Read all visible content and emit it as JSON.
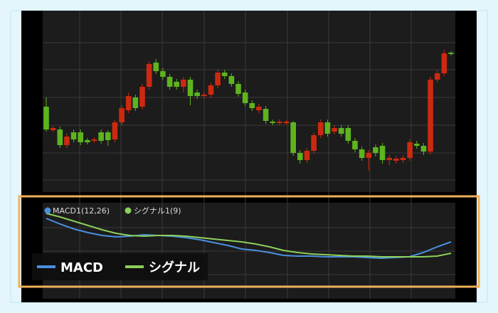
{
  "chart_data": [
    {
      "type": "candlestick",
      "ylim": [
        0,
        250
      ],
      "up_color": "#cc2a10",
      "down_color": "#5db41e",
      "open": [
        120,
        87,
        88,
        66,
        84,
        84,
        73,
        72,
        84,
        84,
        74,
        98,
        115,
        133,
        120,
        148,
        182,
        170,
        162,
        155,
        148,
        158,
        140,
        135,
        137,
        150,
        168,
        163,
        152,
        140,
        125,
        115,
        117,
        99,
        97,
        97,
        98,
        55,
        45,
        58,
        80,
        98,
        85,
        90,
        90,
        72,
        60,
        48,
        63,
        65,
        45,
        44,
        45,
        48,
        68,
        65,
        57,
        158,
        167,
        196
      ],
      "high": [
        133,
        93,
        92,
        82,
        88,
        88,
        76,
        77,
        88,
        87,
        102,
        122,
        140,
        137,
        152,
        184,
        187,
        174,
        166,
        159,
        162,
        162,
        144,
        141,
        154,
        172,
        172,
        167,
        156,
        144,
        129,
        124,
        121,
        102,
        102,
        101,
        100,
        59,
        62,
        84,
        102,
        102,
        94,
        94,
        94,
        76,
        64,
        59,
        67,
        69,
        52,
        51,
        52,
        74,
        72,
        69,
        162,
        172,
        200,
        198
      ],
      "low": [
        85,
        84,
        62,
        62,
        70,
        66,
        67,
        69,
        68,
        65,
        70,
        94,
        111,
        114,
        116,
        144,
        166,
        158,
        144,
        144,
        140,
        122,
        131,
        131,
        133,
        146,
        159,
        148,
        134,
        121,
        114,
        111,
        96,
        94,
        94,
        95,
        51,
        40,
        41,
        54,
        76,
        78,
        81,
        78,
        68,
        56,
        44,
        30,
        50,
        40,
        38,
        40,
        41,
        44,
        61,
        52,
        53,
        154,
        163,
        192
      ],
      "close": [
        88,
        90,
        66,
        78,
        74,
        70,
        70,
        74,
        72,
        73,
        98,
        118,
        135,
        118,
        148,
        180,
        170,
        162,
        148,
        148,
        158,
        135,
        135,
        137,
        150,
        168,
        163,
        152,
        138,
        125,
        118,
        120,
        100,
        97,
        99,
        99,
        55,
        45,
        58,
        80,
        98,
        82,
        90,
        82,
        72,
        60,
        48,
        55,
        55,
        45,
        48,
        47,
        48,
        70,
        65,
        57,
        158,
        167,
        195,
        194
      ]
    },
    {
      "type": "line",
      "ylim": [
        0,
        130
      ],
      "series": [
        {
          "name": "MACD1(12,26)",
          "color": "#4a8fe0",
          "values": [
            113,
            105,
            98,
            93,
            89,
            87,
            88,
            90,
            89,
            88,
            86,
            83,
            79,
            75,
            70,
            68,
            65,
            61,
            60,
            60,
            59,
            59,
            59,
            58,
            57,
            58,
            59,
            65,
            73,
            80
          ]
        },
        {
          "name": "シグナル1(9)",
          "color": "#8ccf5a",
          "values": [
            120,
            115,
            109,
            103,
            97,
            92,
            89,
            88,
            89,
            89,
            88,
            86,
            84,
            82,
            80,
            77,
            73,
            68,
            65,
            63,
            62,
            61,
            60,
            60,
            59,
            59,
            59,
            59,
            60,
            64
          ]
        }
      ],
      "legend_labels": [
        "MACD",
        "シグナル"
      ]
    }
  ]
}
